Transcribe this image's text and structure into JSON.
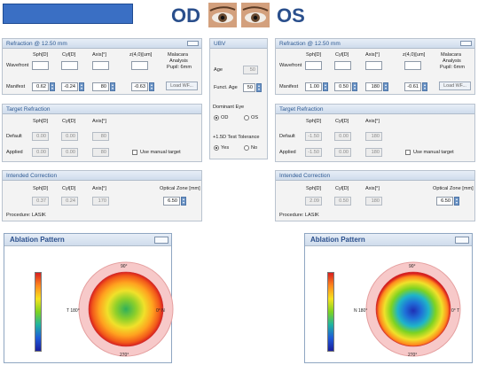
{
  "header": {
    "od_label": "OD",
    "os_label": "OS"
  },
  "od_refraction": {
    "title": "Refraction @ 12.50 mm",
    "col_sph": "Sph[D]",
    "col_cyl": "Cyl[D]",
    "col_axis": "Axis[°]",
    "col_z40": "z(4,0)[um]",
    "malacara": "Malacara",
    "analysis": "Analysis",
    "pupil": "Pupil: 6mm",
    "wavefront_label": "Wavefront",
    "manifest_label": "Manifest",
    "sph": "0.62",
    "cyl": "-0.24",
    "axis": "80",
    "z40": "-0.63",
    "load_wf": "Load WF..."
  },
  "os_refraction": {
    "title": "Refraction @ 12.50 mm",
    "col_sph": "Sph[D]",
    "col_cyl": "Cyl[D]",
    "col_axis": "Axis[°]",
    "col_z40": "z(4,0)[um]",
    "malacara": "Malacara",
    "analysis": "Analysis",
    "pupil": "Pupil: 6mm",
    "wavefront_label": "Wavefront",
    "manifest_label": "Manifest",
    "sph": "1.00",
    "cyl": "0.50",
    "axis": "180",
    "z40": "-0.61",
    "load_wf": "Load WF..."
  },
  "ubv": {
    "title": "UBV",
    "age_label": "Age",
    "age": "50",
    "funct_age_label": "Funct. Age",
    "funct_age": "50",
    "dominant_eye": "Dominant Eye",
    "od": "OD",
    "os": "OS",
    "tolerance": "+1.5D Test Tolerance",
    "yes": "Yes",
    "no": "No"
  },
  "od_target": {
    "title": "Target Refraction",
    "col_sph": "Sph[D]",
    "col_cyl": "Cyl[D]",
    "col_axis": "Axis[°]",
    "default_label": "Default",
    "applied_label": "Applied",
    "default": [
      "0.00",
      "0.00",
      "80"
    ],
    "applied": [
      "0.00",
      "0.00",
      "80"
    ],
    "manual": "Use manual target"
  },
  "os_target": {
    "title": "Target Refraction",
    "col_sph": "Sph[D]",
    "col_cyl": "Cyl[D]",
    "col_axis": "Axis[°]",
    "default_label": "Default",
    "applied_label": "Applied",
    "default": [
      "-1.50",
      "0.00",
      "180"
    ],
    "applied": [
      "-1.50",
      "0.00",
      "180"
    ],
    "manual": "Use manual target"
  },
  "od_correction": {
    "title": "Intended Correction",
    "col_sph": "Sph[D]",
    "col_cyl": "Cyl[D]",
    "col_axis": "Axis[°]",
    "oz_label": "Optical Zone [mm]",
    "values": [
      "0.37",
      "0.24",
      "170"
    ],
    "oz": "6.50",
    "procedure": "Procedure: LASIK"
  },
  "os_correction": {
    "title": "Intended Correction",
    "col_sph": "Sph[D]",
    "col_cyl": "Cyl[D]",
    "col_axis": "Axis[°]",
    "oz_label": "Optical Zone [mm]",
    "values": [
      "2.09",
      "0.50",
      "180"
    ],
    "oz": "6.50",
    "procedure": "Procedure: LASIK"
  },
  "od_ablation": {
    "title": "Ablation Pattern",
    "top": "90°",
    "bottom": "270°",
    "left": "T 180°",
    "right": "0° N"
  },
  "os_ablation": {
    "title": "Ablation Pattern",
    "top": "90°",
    "bottom": "270°",
    "left": "N 180°",
    "right": "0° T"
  },
  "colors": {
    "header_blue": "#3a6fc4",
    "title_blue": "#2a4f8c",
    "panel_head": "#2e5a93"
  }
}
